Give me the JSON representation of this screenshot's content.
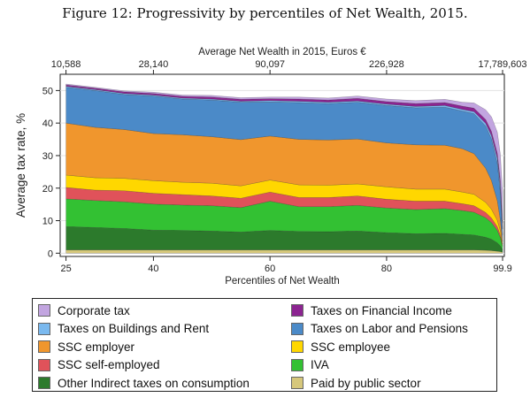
{
  "figure_title": "Figure 12:  Progressivity by percentiles of Net Wealth, 2015.",
  "chart_data": {
    "type": "area",
    "stacked": true,
    "x_top_label": "Average Net Wealth in 2015, Euros €",
    "x_top_ticks": [
      {
        "x": 25,
        "label": "10,588"
      },
      {
        "x": 40,
        "label": "28,140"
      },
      {
        "x": 60,
        "label": "90,097"
      },
      {
        "x": 80,
        "label": "226,928"
      },
      {
        "x": 99.9,
        "label": "17,789,603"
      }
    ],
    "xlabel": "Percentiles of Net Wealth",
    "x_ticks": [
      {
        "x": 25,
        "label": "25"
      },
      {
        "x": 40,
        "label": "40"
      },
      {
        "x": 60,
        "label": "60"
      },
      {
        "x": 80,
        "label": "80"
      },
      {
        "x": 99.9,
        "label": "99.9"
      }
    ],
    "ylabel": "Average tax rate, %",
    "y_ticks": [
      0,
      10,
      20,
      30,
      40,
      50
    ],
    "xlim": [
      24,
      100.2
    ],
    "ylim": [
      -1,
      55
    ],
    "legend_position": "bottom",
    "x": [
      25,
      30,
      35,
      40,
      45,
      50,
      55,
      60,
      65,
      70,
      75,
      80,
      85,
      90,
      93,
      95,
      97,
      98,
      99,
      99.5,
      99.9
    ],
    "series": [
      {
        "name": "Paid by public sector",
        "color": "#d6c77b",
        "values": [
          1.0,
          1.0,
          1.0,
          1.0,
          1.0,
          1.0,
          1.0,
          1.0,
          1.0,
          1.0,
          1.0,
          1.0,
          1.0,
          1.0,
          1.0,
          1.0,
          0.9,
          0.8,
          0.6,
          0.5,
          0.3
        ]
      },
      {
        "name": "Other Indirect taxes on consumption",
        "color": "#2c7a2c",
        "values": [
          7.2,
          6.9,
          6.6,
          6.1,
          6.0,
          5.8,
          5.5,
          6.0,
          5.7,
          5.6,
          5.8,
          5.3,
          5.0,
          5.1,
          4.8,
          4.6,
          4.0,
          3.5,
          2.6,
          1.8,
          0.8
        ]
      },
      {
        "name": "IVA",
        "color": "#33c133",
        "values": [
          8.5,
          8.3,
          8.2,
          8.0,
          7.8,
          7.8,
          7.5,
          9.0,
          7.6,
          7.7,
          7.9,
          7.6,
          7.4,
          7.6,
          7.3,
          7.0,
          6.0,
          5.1,
          3.8,
          2.6,
          1.0
        ]
      },
      {
        "name": "SSC self-employed",
        "color": "#e0525a",
        "values": [
          3.5,
          3.2,
          3.4,
          3.3,
          3.2,
          3.0,
          2.9,
          2.8,
          2.8,
          2.8,
          2.9,
          2.7,
          2.6,
          2.3,
          2.1,
          2.0,
          1.6,
          1.4,
          1.1,
          0.7,
          0.3
        ]
      },
      {
        "name": "SSC employee",
        "color": "#ffd700",
        "values": [
          3.8,
          3.8,
          3.8,
          3.9,
          3.8,
          3.9,
          3.8,
          3.7,
          3.9,
          3.8,
          3.7,
          3.8,
          3.7,
          3.7,
          3.6,
          3.5,
          3.1,
          2.7,
          2.0,
          1.3,
          0.4
        ]
      },
      {
        "name": "SSC employer",
        "color": "#f0962d",
        "values": [
          16.0,
          15.5,
          15.0,
          14.5,
          14.6,
          14.3,
          14.2,
          13.5,
          14.0,
          13.9,
          13.8,
          13.5,
          13.6,
          13.5,
          13.3,
          12.5,
          10.5,
          8.8,
          6.0,
          3.5,
          0.8
        ]
      },
      {
        "name": "Taxes on Labor and Pensions",
        "color": "#4b8ac8",
        "values": [
          11.0,
          11.3,
          10.8,
          11.5,
          11.0,
          11.3,
          11.5,
          10.5,
          11.3,
          11.2,
          11.3,
          11.5,
          11.4,
          11.7,
          11.6,
          12.3,
          13.0,
          12.8,
          11.5,
          8.5,
          2.0
        ]
      },
      {
        "name": "Taxes on Buildings and Rent",
        "color": "#7ab9ef",
        "values": [
          0.3,
          0.3,
          0.3,
          0.3,
          0.3,
          0.3,
          0.3,
          0.4,
          0.4,
          0.4,
          0.4,
          0.4,
          0.4,
          0.5,
          0.5,
          0.6,
          0.8,
          1.0,
          1.6,
          2.0,
          1.8
        ]
      },
      {
        "name": "Taxes on Financial Income",
        "color": "#8c2491",
        "values": [
          0.4,
          0.4,
          0.5,
          0.5,
          0.5,
          0.6,
          0.6,
          0.6,
          0.7,
          0.7,
          0.8,
          0.8,
          0.9,
          0.9,
          1.0,
          1.1,
          1.2,
          1.3,
          1.5,
          1.7,
          2.0
        ]
      },
      {
        "name": "Corporate tax",
        "color": "#c2a5e0",
        "values": [
          0.3,
          0.3,
          0.3,
          0.4,
          0.4,
          0.5,
          0.5,
          0.5,
          0.6,
          0.6,
          0.7,
          0.8,
          0.9,
          1.0,
          1.2,
          1.6,
          3.0,
          4.5,
          6.5,
          8.0,
          9.5
        ]
      }
    ]
  },
  "legend": {
    "left": [
      "Corporate tax",
      "Taxes on Buildings and Rent",
      "SSC employer",
      "SSC self-employed",
      "Other Indirect taxes on consumption"
    ],
    "right": [
      "Taxes on Financial Income",
      "Taxes on Labor and Pensions",
      "SSC employee",
      "IVA",
      "Paid by public sector"
    ]
  },
  "legend_colors": {
    "Corporate tax": "#c2a5e0",
    "Taxes on Buildings and Rent": "#7ab9ef",
    "SSC employer": "#f0962d",
    "SSC self-employed": "#e0525a",
    "Other Indirect taxes on consumption": "#2c7a2c",
    "Taxes on Financial Income": "#8c2491",
    "Taxes on Labor and Pensions": "#4b8ac8",
    "SSC employee": "#ffd700",
    "IVA": "#33c133",
    "Paid by public sector": "#d6c77b"
  }
}
